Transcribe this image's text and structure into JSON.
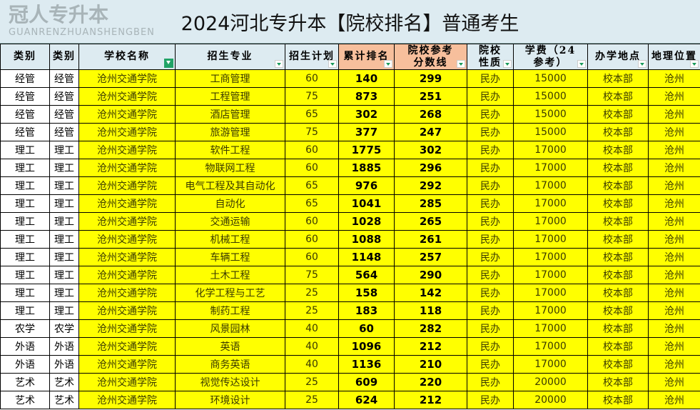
{
  "title": "2024河北专升本【院校排名】普通考生",
  "headers": [
    "类别",
    "类别",
    "学校名称",
    "招生专业",
    "招生计划",
    "累计排名",
    "院校参考分数线",
    "院校性质",
    "学费（24参考）",
    "办学地点",
    "地理位置"
  ],
  "watermark": "冠人专升本 GUANRENZHUANSHENGBEN",
  "rows": [
    [
      "经管",
      "经管",
      "沧州交通学院",
      "工商管理",
      "60",
      "140",
      "299",
      "民办",
      "15000",
      "校本部",
      "沧州"
    ],
    [
      "经管",
      "经管",
      "沧州交通学院",
      "工程管理",
      "75",
      "873",
      "251",
      "民办",
      "15000",
      "校本部",
      "沧州"
    ],
    [
      "经管",
      "经管",
      "沧州交通学院",
      "酒店管理",
      "65",
      "302",
      "268",
      "民办",
      "15000",
      "校本部",
      "沧州"
    ],
    [
      "经管",
      "经管",
      "沧州交通学院",
      "旅游管理",
      "75",
      "377",
      "247",
      "民办",
      "15000",
      "校本部",
      "沧州"
    ],
    [
      "理工",
      "理工",
      "沧州交通学院",
      "软件工程",
      "60",
      "1775",
      "302",
      "民办",
      "17000",
      "校本部",
      "沧州"
    ],
    [
      "理工",
      "理工",
      "沧州交通学院",
      "物联网工程",
      "60",
      "1885",
      "296",
      "民办",
      "17000",
      "校本部",
      "沧州"
    ],
    [
      "理工",
      "理工",
      "沧州交通学院",
      "电气工程及其自动化",
      "65",
      "976",
      "292",
      "民办",
      "17000",
      "校本部",
      "沧州"
    ],
    [
      "理工",
      "理工",
      "沧州交通学院",
      "自动化",
      "65",
      "1041",
      "285",
      "民办",
      "17000",
      "校本部",
      "沧州"
    ],
    [
      "理工",
      "理工",
      "沧州交通学院",
      "交通运输",
      "60",
      "1028",
      "265",
      "民办",
      "17000",
      "校本部",
      "沧州"
    ],
    [
      "理工",
      "理工",
      "沧州交通学院",
      "机械工程",
      "60",
      "1088",
      "261",
      "民办",
      "17000",
      "校本部",
      "沧州"
    ],
    [
      "理工",
      "理工",
      "沧州交通学院",
      "车辆工程",
      "60",
      "1148",
      "257",
      "民办",
      "17000",
      "校本部",
      "沧州"
    ],
    [
      "理工",
      "理工",
      "沧州交通学院",
      "土木工程",
      "75",
      "564",
      "290",
      "民办",
      "17000",
      "校本部",
      "沧州"
    ],
    [
      "理工",
      "理工",
      "沧州交通学院",
      "化学工程与工艺",
      "25",
      "158",
      "142",
      "民办",
      "17000",
      "校本部",
      "沧州"
    ],
    [
      "理工",
      "理工",
      "沧州交通学院",
      "制药工程",
      "25",
      "183",
      "118",
      "民办",
      "17000",
      "校本部",
      "沧州"
    ],
    [
      "农学",
      "农学",
      "沧州交通学院",
      "风景园林",
      "40",
      "60",
      "282",
      "民办",
      "17000",
      "校本部",
      "沧州"
    ],
    [
      "外语",
      "外语",
      "沧州交通学院",
      "英语",
      "40",
      "1096",
      "212",
      "民办",
      "17000",
      "校本部",
      "沧州"
    ],
    [
      "外语",
      "外语",
      "沧州交通学院",
      "商务英语",
      "40",
      "1136",
      "210",
      "民办",
      "17000",
      "校本部",
      "沧州"
    ],
    [
      "艺术",
      "艺术",
      "沧州交通学院",
      "视觉传达设计",
      "25",
      "609",
      "220",
      "民办",
      "20000",
      "校本部",
      "沧州"
    ],
    [
      "艺术",
      "艺术",
      "沧州交通学院",
      "环境设计",
      "25",
      "624",
      "212",
      "民办",
      "20000",
      "校本部",
      "沧州"
    ]
  ]
}
